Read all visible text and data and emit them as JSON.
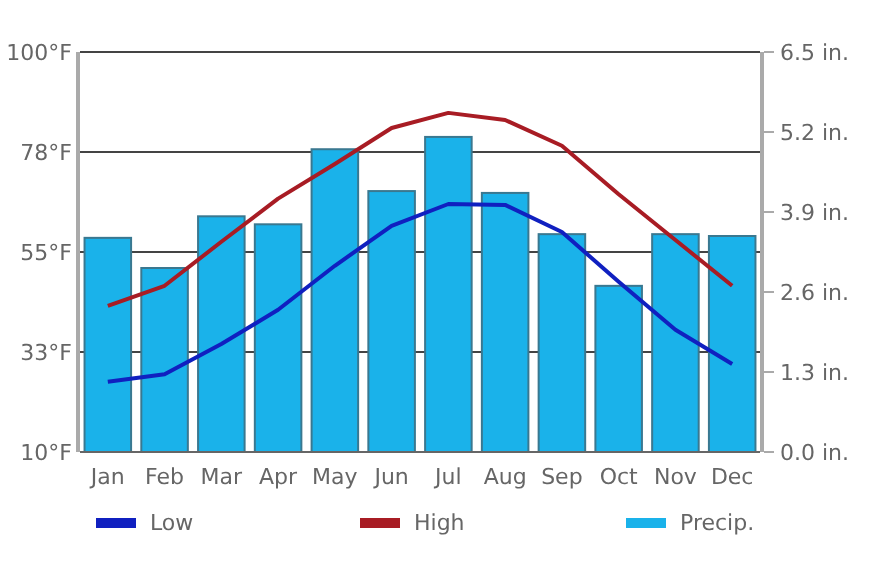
{
  "chart_data": {
    "type": "bar",
    "categories": [
      "Jan",
      "Feb",
      "Mar",
      "Apr",
      "May",
      "Jun",
      "Jul",
      "Aug",
      "Sep",
      "Oct",
      "Nov",
      "Dec"
    ],
    "series": [
      {
        "name": "Low",
        "type": "line",
        "color": "#1020c0",
        "values": [
          25.8,
          27.5,
          34.3,
          42,
          51.9,
          60.9,
          65.8,
          65.6,
          59.5,
          48.3,
          37.5,
          29.8
        ]
      },
      {
        "name": "High",
        "type": "line",
        "color": "#a81c24",
        "values": [
          42.9,
          47.4,
          57.3,
          67,
          74.8,
          82.9,
          86.3,
          84.7,
          78.9,
          68,
          57.7,
          47.4
        ]
      },
      {
        "name": "Precip.",
        "type": "bar",
        "axis": "y2",
        "color": "#1ab2ea",
        "values": [
          3.48,
          2.99,
          3.83,
          3.7,
          4.92,
          4.24,
          5.12,
          4.21,
          3.54,
          2.7,
          3.54,
          3.51
        ]
      }
    ],
    "ylim": [
      10,
      100
    ],
    "yticks": [
      {
        "value": 10,
        "label": "10°F"
      },
      {
        "value": 32.5,
        "label": "33°F"
      },
      {
        "value": 55,
        "label": "55°F"
      },
      {
        "value": 77.5,
        "label": "78°F"
      },
      {
        "value": 100,
        "label": "100°F"
      }
    ],
    "y2lim": [
      0,
      6.5
    ],
    "y2ticks": [
      {
        "value": 0,
        "label": "0.0 in."
      },
      {
        "value": 1.3,
        "label": "1.3 in."
      },
      {
        "value": 2.6,
        "label": "2.6 in."
      },
      {
        "value": 3.9,
        "label": "3.9 in."
      },
      {
        "value": 5.2,
        "label": "5.2 in."
      },
      {
        "value": 6.5,
        "label": "6.5 in."
      }
    ],
    "grid": "y",
    "legend": "bottom",
    "marker": "none"
  }
}
